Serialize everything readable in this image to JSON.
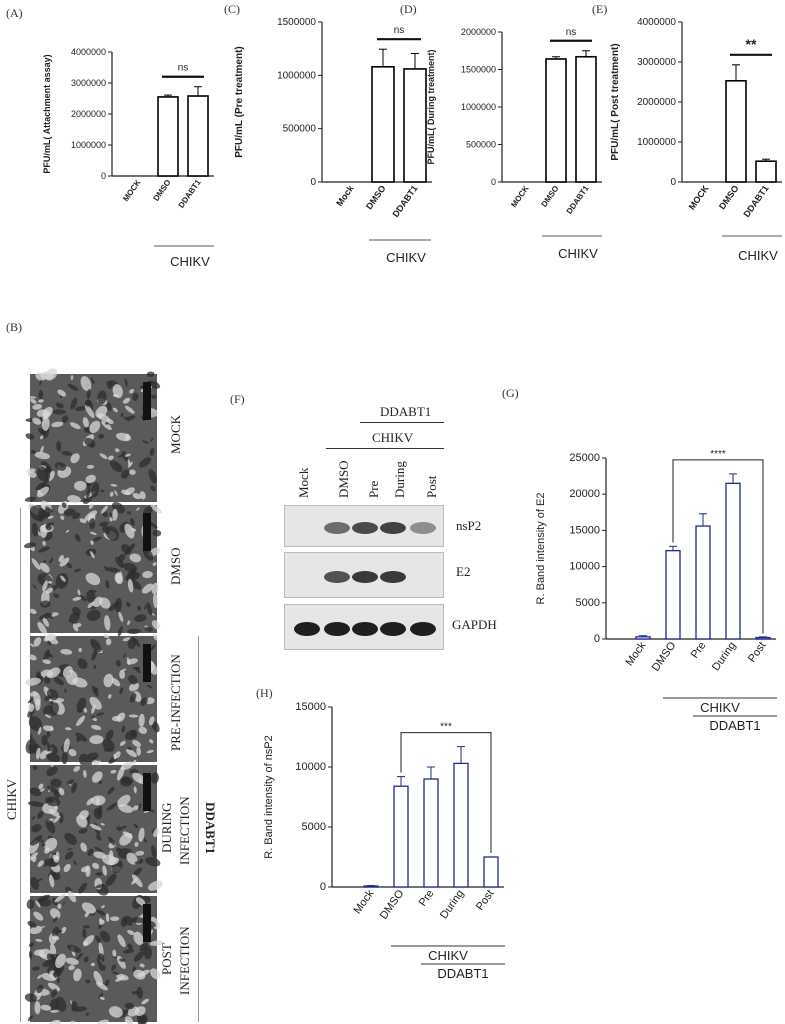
{
  "labels": {
    "A": "(A)",
    "B": "(B)",
    "C": "(C)",
    "D": "(D)",
    "E": "(E)",
    "F": "(F)",
    "G": "(G)",
    "H": "(H)"
  },
  "chikv": "CHIKV",
  "ddabt1": "DDABT1",
  "micro_panels": [
    "MOCK",
    "DMSO",
    "PRE-INFECTION",
    "DURING INFECTION",
    "POST INFECTION"
  ],
  "micro_multiline": [
    [
      "MOCK"
    ],
    [
      "DMSO"
    ],
    [
      "PRE-INFECTION"
    ],
    [
      "DURING",
      "INFECTION"
    ],
    [
      "POST",
      "INFECTION"
    ]
  ],
  "blot": {
    "lanes": [
      "Mock",
      "DMSO",
      "Pre",
      "During",
      "Post"
    ],
    "bands": [
      "nsP2",
      "E2",
      "GAPDH"
    ],
    "band_intensity": {
      "nsP2": [
        0,
        0.55,
        0.75,
        0.8,
        0.35
      ],
      "E2": [
        0,
        0.7,
        0.85,
        0.85,
        0
      ],
      "GAPDH": [
        1,
        1,
        1,
        1,
        1
      ]
    }
  },
  "chart_data": [
    {
      "id": "A",
      "type": "bar",
      "ylabel": "PFU/mL( Attachment assay)",
      "categories": [
        "MOCK",
        "DMSO",
        "DDABT1"
      ],
      "values": [
        0,
        2550000,
        2580000
      ],
      "errors": [
        0,
        60000,
        300000
      ],
      "ylim": [
        0,
        4000000
      ],
      "yticks": [
        0,
        1000000,
        2000000,
        3000000,
        4000000
      ],
      "significance": "ns",
      "group_label": "CHIKV"
    },
    {
      "id": "C",
      "type": "bar",
      "ylabel": "PFU/mL (Pre treatment)",
      "categories": [
        "Mock",
        "DMSO",
        "DDABT1"
      ],
      "values": [
        0,
        1080000,
        1060000
      ],
      "errors": [
        0,
        165000,
        145000
      ],
      "ylim": [
        0,
        1500000
      ],
      "yticks": [
        0,
        500000,
        1000000,
        1500000
      ],
      "significance": "ns",
      "group_label": "CHIKV"
    },
    {
      "id": "D",
      "type": "bar",
      "ylabel": "PFU/mL( During treatment)",
      "categories": [
        "MOCK",
        "DMSO",
        "DDABT1"
      ],
      "values": [
        0,
        1640000,
        1670000
      ],
      "errors": [
        0,
        30000,
        80000
      ],
      "ylim": [
        0,
        2000000
      ],
      "yticks": [
        0,
        500000,
        1000000,
        1500000,
        2000000
      ],
      "significance": "ns",
      "group_label": "CHIKV"
    },
    {
      "id": "E",
      "type": "bar",
      "ylabel": "PFU/mL( Post treatment)",
      "categories": [
        "MOCK",
        "DMSO",
        "DDABT1"
      ],
      "values": [
        0,
        2530000,
        520000
      ],
      "errors": [
        0,
        400000,
        50000
      ],
      "ylim": [
        0,
        4000000
      ],
      "yticks": [
        0,
        1000000,
        2000000,
        3000000,
        4000000
      ],
      "significance": "**",
      "group_label": "CHIKV"
    },
    {
      "id": "G",
      "type": "bar",
      "ylabel": "R. Band intensity  of E2",
      "categories": [
        "Mock",
        "DMSO",
        "Pre",
        "During",
        "Post"
      ],
      "values": [
        300,
        12200,
        15600,
        21500,
        200
      ],
      "errors": [
        150,
        600,
        1700,
        1300,
        100
      ],
      "ylim": [
        0,
        25000
      ],
      "yticks": [
        0,
        5000,
        10000,
        15000,
        20000,
        25000
      ],
      "significance": "****",
      "group_label": "CHIKV",
      "subgroup_label": "DDABT1"
    },
    {
      "id": "H",
      "type": "bar",
      "ylabel": "R. Band intensity  of nsP2",
      "categories": [
        "Mock",
        "DMSO",
        "Pre",
        "During",
        "Post"
      ],
      "values": [
        80,
        8400,
        9000,
        10300,
        2500
      ],
      "errors": [
        40,
        800,
        1000,
        1400,
        0
      ],
      "ylim": [
        0,
        15000
      ],
      "yticks": [
        0,
        5000,
        10000,
        15000
      ],
      "significance": "***",
      "group_label": "CHIKV",
      "subgroup_label": "DDABT1"
    }
  ]
}
